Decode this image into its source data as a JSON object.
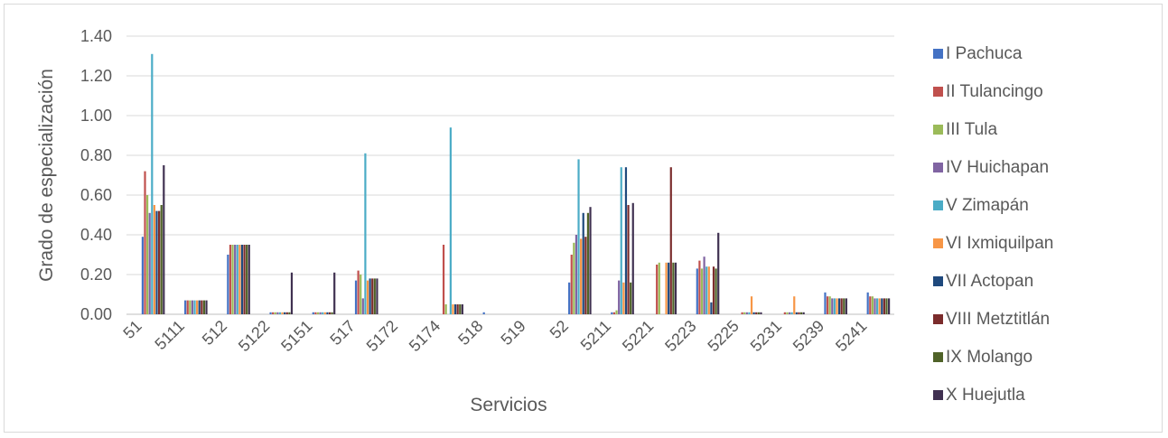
{
  "chart_data": {
    "type": "bar",
    "xlabel": "Servicios",
    "ylabel": "Grado de especialización",
    "ylim": [
      0,
      1.4
    ],
    "yticks": [
      "0.00",
      "0.20",
      "0.40",
      "0.60",
      "0.80",
      "1.00",
      "1.20",
      "1.40"
    ],
    "grid": "horizontal",
    "legend_position": "right",
    "categories": [
      "51",
      "5111",
      "512",
      "5122",
      "5151",
      "517",
      "5172",
      "5174",
      "518",
      "519",
      "52",
      "5211",
      "5221",
      "5223",
      "5225",
      "5231",
      "5239",
      "5241"
    ],
    "x_tick_labels": [
      "51",
      "5111",
      "512",
      "5122",
      "5151",
      "517",
      "5172",
      "5174",
      "518",
      "519",
      "52",
      "5211",
      "5221",
      "5223",
      "5225",
      "5231",
      "5239",
      "5241"
    ],
    "series": [
      {
        "name": "I Pachuca",
        "color": "#4472c4",
        "values": [
          0.39,
          0.07,
          0.3,
          0.01,
          0.01,
          0.17,
          0.0,
          0.0,
          0.01,
          0.0,
          0.16,
          0.01,
          0.0,
          0.23,
          0.0,
          0.0,
          0.11,
          0.11
        ]
      },
      {
        "name": "II Tulancingo",
        "color": "#c0504d",
        "values": [
          0.72,
          0.07,
          0.35,
          0.01,
          0.01,
          0.22,
          0.0,
          0.35,
          0.0,
          0.0,
          0.3,
          0.01,
          0.25,
          0.27,
          0.01,
          0.01,
          0.09,
          0.09
        ]
      },
      {
        "name": "III Tula",
        "color": "#9bbb59",
        "values": [
          0.6,
          0.07,
          0.35,
          0.01,
          0.01,
          0.2,
          0.0,
          0.05,
          0.0,
          0.0,
          0.36,
          0.02,
          0.26,
          0.23,
          0.01,
          0.01,
          0.09,
          0.09
        ]
      },
      {
        "name": "IV Huichapan",
        "color": "#8064a2",
        "values": [
          0.51,
          0.07,
          0.35,
          0.01,
          0.01,
          0.08,
          0.0,
          0.0,
          0.0,
          0.0,
          0.4,
          0.17,
          0.0,
          0.29,
          0.01,
          0.01,
          0.08,
          0.08
        ]
      },
      {
        "name": "V Zimapán",
        "color": "#4bacc6",
        "values": [
          1.31,
          0.07,
          0.35,
          0.01,
          0.01,
          0.81,
          0.0,
          0.94,
          0.0,
          0.0,
          0.78,
          0.74,
          0.0,
          0.24,
          0.01,
          0.01,
          0.08,
          0.08
        ]
      },
      {
        "name": "VI Ixmiquilpan",
        "color": "#f79646",
        "values": [
          0.55,
          0.07,
          0.35,
          0.01,
          0.01,
          0.17,
          0.0,
          0.05,
          0.0,
          0.0,
          0.38,
          0.16,
          0.26,
          0.24,
          0.09,
          0.09,
          0.08,
          0.08
        ]
      },
      {
        "name": "VII Actopan",
        "color": "#1f497d",
        "values": [
          0.52,
          0.07,
          0.35,
          0.01,
          0.01,
          0.18,
          0.0,
          0.05,
          0.0,
          0.0,
          0.51,
          0.74,
          0.26,
          0.06,
          0.01,
          0.01,
          0.08,
          0.08
        ]
      },
      {
        "name": "VIII Metztitlán",
        "color": "#7b2c2c",
        "values": [
          0.52,
          0.07,
          0.35,
          0.01,
          0.01,
          0.18,
          0.0,
          0.05,
          0.0,
          0.0,
          0.39,
          0.55,
          0.74,
          0.24,
          0.01,
          0.01,
          0.08,
          0.08
        ]
      },
      {
        "name": "IX Molango",
        "color": "#4f6228",
        "values": [
          0.55,
          0.07,
          0.35,
          0.01,
          0.01,
          0.18,
          0.0,
          0.05,
          0.0,
          0.0,
          0.51,
          0.16,
          0.26,
          0.23,
          0.01,
          0.01,
          0.08,
          0.08
        ]
      },
      {
        "name": "X Huejutla",
        "color": "#403151",
        "values": [
          0.75,
          0.07,
          0.35,
          0.21,
          0.21,
          0.18,
          0.0,
          0.05,
          0.0,
          0.0,
          0.54,
          0.56,
          0.26,
          0.41,
          0.01,
          0.01,
          0.08,
          0.08
        ]
      }
    ]
  }
}
